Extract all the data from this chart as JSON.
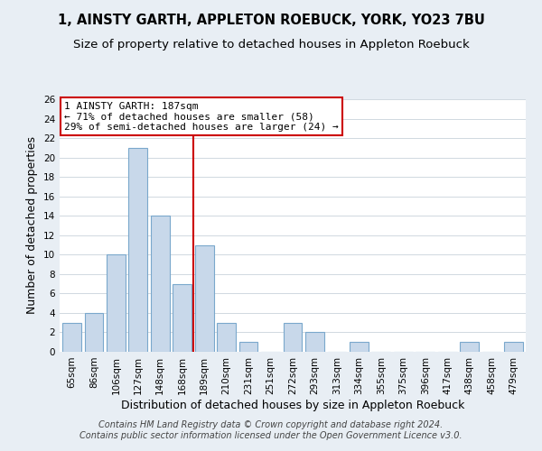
{
  "title": "1, AINSTY GARTH, APPLETON ROEBUCK, YORK, YO23 7BU",
  "subtitle": "Size of property relative to detached houses in Appleton Roebuck",
  "xlabel": "Distribution of detached houses by size in Appleton Roebuck",
  "ylabel": "Number of detached properties",
  "bin_labels": [
    "65sqm",
    "86sqm",
    "106sqm",
    "127sqm",
    "148sqm",
    "168sqm",
    "189sqm",
    "210sqm",
    "231sqm",
    "251sqm",
    "272sqm",
    "293sqm",
    "313sqm",
    "334sqm",
    "355sqm",
    "375sqm",
    "396sqm",
    "417sqm",
    "438sqm",
    "458sqm",
    "479sqm"
  ],
  "bar_values": [
    3,
    4,
    10,
    21,
    14,
    7,
    11,
    3,
    1,
    0,
    3,
    2,
    0,
    1,
    0,
    0,
    0,
    0,
    1,
    0,
    1
  ],
  "bar_color": "#c8d8ea",
  "bar_edge_color": "#7aa8cc",
  "vline_x_index": 6,
  "vline_color": "#cc0000",
  "ylim": [
    0,
    26
  ],
  "yticks": [
    0,
    2,
    4,
    6,
    8,
    10,
    12,
    14,
    16,
    18,
    20,
    22,
    24,
    26
  ],
  "annotation_title": "1 AINSTY GARTH: 187sqm",
  "annotation_line1": "← 71% of detached houses are smaller (58)",
  "annotation_line2": "29% of semi-detached houses are larger (24) →",
  "annotation_box_color": "#ffffff",
  "annotation_box_edge": "#cc0000",
  "footer_line1": "Contains HM Land Registry data © Crown copyright and database right 2024.",
  "footer_line2": "Contains public sector information licensed under the Open Government Licence v3.0.",
  "background_color": "#e8eef4",
  "plot_background": "#ffffff",
  "grid_color": "#d0d8e0",
  "title_fontsize": 10.5,
  "subtitle_fontsize": 9.5,
  "axis_label_fontsize": 9,
  "tick_fontsize": 7.5,
  "footer_fontsize": 7
}
